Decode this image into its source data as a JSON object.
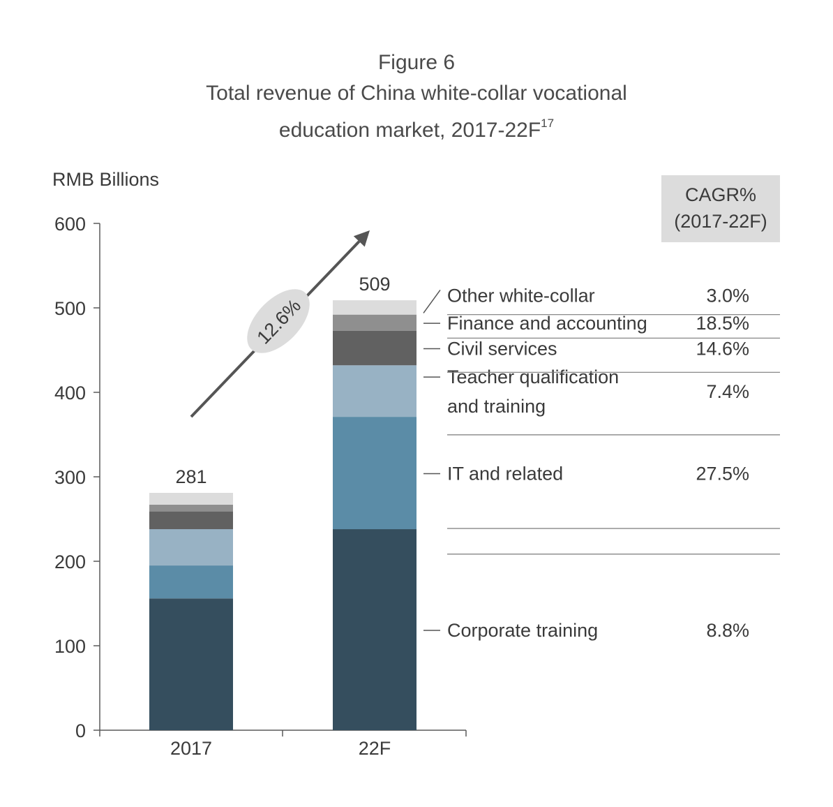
{
  "header": {
    "figure_label": "Figure 6",
    "title_line1": "Total revenue of China white-collar vocational",
    "title_line2": "education market, 2017-22F",
    "title_footnote": "17"
  },
  "cagr_header": {
    "line1": "CAGR%",
    "line2": "(2017-22F)"
  },
  "growth_badge": "12.6%",
  "chart_data": {
    "type": "bar",
    "stacked": true,
    "title": "Total revenue of China white-collar vocational education market, 2017-22F",
    "ylabel": "RMB Billions",
    "xlabel": "",
    "ylim": [
      0,
      600
    ],
    "yticks": [
      0,
      100,
      200,
      300,
      400,
      500,
      600
    ],
    "grid": false,
    "legend": "right",
    "categories": [
      "2017",
      "22F"
    ],
    "totals": [
      281,
      509
    ],
    "series": [
      {
        "name": "Corporate training",
        "label_lines": [
          "Corporate training"
        ],
        "values": [
          156,
          238
        ],
        "cagr": "8.8%",
        "color": "#354e5e"
      },
      {
        "name": "IT and related",
        "label_lines": [
          "IT and related"
        ],
        "values": [
          39,
          133
        ],
        "cagr": "27.5%",
        "color": "#5b8ca7"
      },
      {
        "name": "Teacher qualification and training",
        "label_lines": [
          "Teacher qualification",
          "and training"
        ],
        "values": [
          43,
          61
        ],
        "cagr": "7.4%",
        "color": "#98b2c4"
      },
      {
        "name": "Civil services",
        "label_lines": [
          "Civil services"
        ],
        "values": [
          21,
          41
        ],
        "cagr": "14.6%",
        "color": "#616161"
      },
      {
        "name": "Finance and accounting",
        "label_lines": [
          "Finance and accounting"
        ],
        "values": [
          8,
          19
        ],
        "cagr": "18.5%",
        "color": "#8f8f8f"
      },
      {
        "name": "Other white-collar",
        "label_lines": [
          "Other white-collar"
        ],
        "values": [
          14,
          17
        ],
        "cagr": "3.0%",
        "color": "#dcdcdc"
      }
    ]
  }
}
